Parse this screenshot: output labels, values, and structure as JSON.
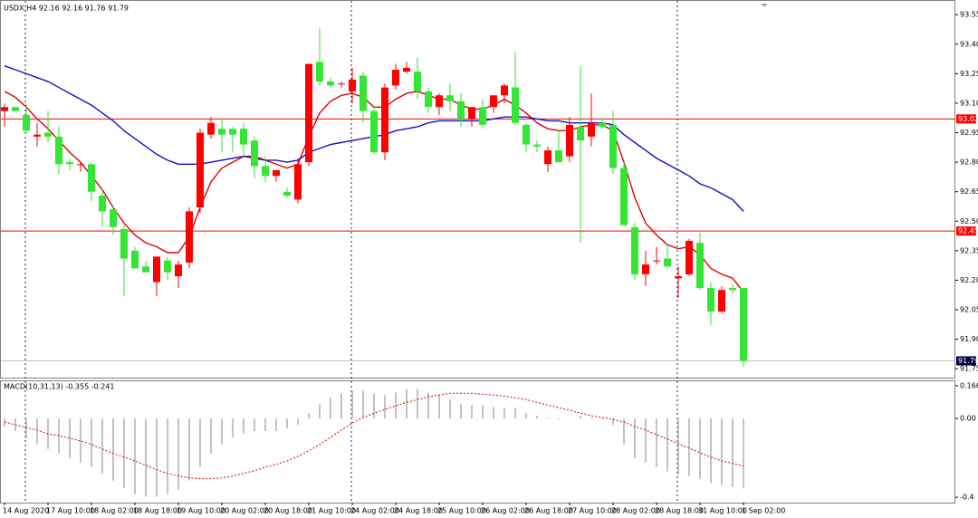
{
  "chart_data": [
    {
      "type": "candlestick",
      "title": "USDX,H4  92.16 92.16 91.76 91.79",
      "categories": [
        "14 Aug 2020",
        null,
        null,
        null,
        "17 Aug 10:00",
        null,
        null,
        null,
        "18 Aug 02:00",
        null,
        null,
        null,
        "18 Aug 18:00",
        null,
        null,
        null,
        "19 Aug 10:00",
        null,
        null,
        null,
        "20 Aug 02:00",
        null,
        null,
        null,
        "20 Aug 18:00",
        null,
        null,
        null,
        "21 Aug 10:00",
        null,
        null,
        null,
        "24 Aug 02:00",
        null,
        null,
        null,
        "24 Aug 18:00",
        null,
        null,
        null,
        "25 Aug 10:00",
        null,
        null,
        null,
        "26 Aug 02:00",
        null,
        null,
        null,
        "26 Aug 18:00",
        null,
        null,
        null,
        "27 Aug 10:00",
        null,
        null,
        null,
        "28 Aug 02:00",
        null,
        null,
        null,
        "28 Aug 18:00",
        null,
        null,
        null,
        "31 Aug 10:00",
        null,
        null,
        null,
        "1 Sep 02:00"
      ],
      "open": [
        93.06,
        93.08,
        93.04,
        92.93,
        92.95,
        92.93,
        92.8,
        92.79,
        92.79,
        92.63,
        92.56,
        92.46,
        92.35,
        92.27,
        92.19,
        92.3,
        92.22,
        92.29,
        92.57,
        92.94,
        92.97,
        92.97,
        92.97,
        92.91,
        92.78,
        92.73,
        92.65,
        92.61,
        92.8,
        93.31,
        93.21,
        93.2,
        93.16,
        93.24,
        93.06,
        92.85,
        93.19,
        93.26,
        93.26,
        93.16,
        93.08,
        93.14,
        93.11,
        93.02,
        93.08,
        93.08,
        93.14,
        93.18,
        92.99,
        92.89,
        92.79,
        92.86,
        92.83,
        92.98,
        92.93,
        93.0,
        92.99,
        92.77,
        92.47,
        92.23,
        92.3,
        92.31,
        92.21,
        92.23,
        92.39,
        92.16,
        92.04,
        92.16,
        92.16
      ],
      "high": [
        93.1,
        93.08,
        93.1,
        93.0,
        93.06,
        92.98,
        92.82,
        92.8,
        92.8,
        92.66,
        92.58,
        92.48,
        92.37,
        92.3,
        92.32,
        92.32,
        92.3,
        92.57,
        92.97,
        93.03,
        93.02,
        92.98,
        93.0,
        92.93,
        92.83,
        92.76,
        92.67,
        92.82,
        93.3,
        93.48,
        93.23,
        93.21,
        93.28,
        93.26,
        93.08,
        93.2,
        93.3,
        93.31,
        93.33,
        93.18,
        93.15,
        93.2,
        93.15,
        93.08,
        93.12,
        93.14,
        93.2,
        93.36,
        93.0,
        92.91,
        92.88,
        92.96,
        93.03,
        93.29,
        93.15,
        93.02,
        93.06,
        92.8,
        92.49,
        92.35,
        92.37,
        92.38,
        92.27,
        92.41,
        92.44,
        92.19,
        92.17,
        92.18,
        92.16
      ],
      "low": [
        92.98,
        93.06,
        92.95,
        92.88,
        92.9,
        92.74,
        92.76,
        92.75,
        92.6,
        92.47,
        92.43,
        92.12,
        92.26,
        92.24,
        92.12,
        92.2,
        92.16,
        92.26,
        92.54,
        92.92,
        92.85,
        92.85,
        92.83,
        92.72,
        92.7,
        92.7,
        92.62,
        92.59,
        92.78,
        93.19,
        93.18,
        93.18,
        93.1,
        93.0,
        92.84,
        92.81,
        93.17,
        93.25,
        93.12,
        93.05,
        93.04,
        93.06,
        92.98,
        92.98,
        92.97,
        93.05,
        93.1,
        92.99,
        92.85,
        92.85,
        92.75,
        92.8,
        92.8,
        92.39,
        92.88,
        92.97,
        92.74,
        92.48,
        92.2,
        92.17,
        92.28,
        92.26,
        92.11,
        92.22,
        92.15,
        91.97,
        92.03,
        92.13,
        91.76
      ],
      "close": [
        93.08,
        93.06,
        92.96,
        92.94,
        92.93,
        92.79,
        92.79,
        92.79,
        92.65,
        92.55,
        92.47,
        92.31,
        92.26,
        92.24,
        92.32,
        92.24,
        92.28,
        92.55,
        92.95,
        93.0,
        92.94,
        92.94,
        92.89,
        92.78,
        92.73,
        92.76,
        92.63,
        92.79,
        93.3,
        93.21,
        93.19,
        93.2,
        93.22,
        93.06,
        92.85,
        93.18,
        93.27,
        93.28,
        93.16,
        93.08,
        93.14,
        93.11,
        93.02,
        93.08,
        92.99,
        93.14,
        93.19,
        93.0,
        92.89,
        92.88,
        92.86,
        92.8,
        92.99,
        92.91,
        93.0,
        92.98,
        92.77,
        92.48,
        92.23,
        92.28,
        92.3,
        92.27,
        92.22,
        92.4,
        92.16,
        92.04,
        92.15,
        92.15,
        91.79
      ],
      "up_color": "#ff0000",
      "down_color": "#33e633",
      "overlays": [
        {
          "color": "#e00000",
          "values": [
            93.16,
            93.13,
            93.08,
            93.02,
            92.97,
            92.91,
            92.85,
            92.8,
            92.73,
            92.66,
            92.57,
            92.49,
            92.43,
            92.39,
            92.37,
            92.34,
            92.34,
            92.42,
            92.57,
            92.7,
            92.77,
            92.8,
            92.83,
            92.83,
            92.81,
            92.79,
            92.77,
            92.79,
            92.93,
            93.05,
            93.11,
            93.14,
            93.15,
            93.13,
            93.08,
            93.08,
            93.12,
            93.15,
            93.16,
            93.14,
            93.12,
            93.12,
            93.09,
            93.07,
            93.07,
            93.09,
            93.12,
            93.09,
            93.05,
            93.0,
            92.97,
            92.96,
            92.96,
            92.98,
            92.99,
            92.99,
            92.96,
            92.8,
            92.62,
            92.49,
            92.43,
            92.38,
            92.36,
            92.37,
            92.33,
            92.26,
            92.23,
            92.21,
            92.14
          ]
        },
        {
          "color": "#1010c8",
          "values": [
            93.29,
            93.27,
            93.25,
            93.23,
            93.21,
            93.18,
            93.15,
            93.12,
            93.09,
            93.05,
            93.01,
            92.96,
            92.92,
            92.88,
            92.84,
            92.81,
            92.79,
            92.79,
            92.79,
            92.8,
            92.81,
            92.82,
            92.83,
            92.82,
            92.81,
            92.81,
            92.8,
            92.81,
            92.85,
            92.87,
            92.89,
            92.9,
            92.91,
            92.92,
            92.93,
            92.94,
            92.96,
            92.97,
            92.98,
            93.0,
            93.01,
            93.01,
            93.01,
            93.01,
            93.01,
            93.02,
            93.03,
            93.03,
            93.03,
            93.02,
            93.01,
            93.01,
            93.0,
            93.0,
            93.0,
            93.0,
            92.99,
            92.94,
            92.9,
            92.86,
            92.82,
            92.79,
            92.76,
            92.73,
            92.69,
            92.67,
            92.64,
            92.61,
            92.55
          ]
        }
      ],
      "levels": [
        {
          "value": 93.02,
          "color": "#ff0000"
        },
        {
          "value": 92.45,
          "color": "#ff0000"
        }
      ],
      "last": {
        "value": 91.79,
        "color": "#c0c0c0",
        "label_color": "#000040"
      },
      "ylim": [
        91.7,
        93.62
      ],
      "yticks": [
        93.55,
        {
          "value": 93.4,
          "label": "93.40"
        },
        93.25,
        {
          "value": 93.1,
          "label": "93.10"
        },
        92.95,
        {
          "value": 92.8,
          "label": "92.80"
        },
        92.65,
        {
          "value": 92.5,
          "label": "92.50"
        },
        92.35,
        {
          "value": 92.2,
          "label": "92.20"
        },
        92.05,
        {
          "value": 91.9,
          "label": "91.90"
        },
        91.75
      ]
    },
    {
      "type": "macd",
      "title": "MACD(10,31,13) -0.355 -0.241",
      "histogram": [
        -0.041,
        -0.064,
        -0.1,
        -0.132,
        -0.155,
        -0.178,
        -0.201,
        -0.224,
        -0.247,
        -0.279,
        -0.315,
        -0.352,
        -0.384,
        -0.397,
        -0.397,
        -0.384,
        -0.361,
        -0.315,
        -0.247,
        -0.178,
        -0.132,
        -0.096,
        -0.078,
        -0.064,
        -0.064,
        -0.064,
        -0.05,
        -0.032,
        0.027,
        0.073,
        0.105,
        0.128,
        0.142,
        0.142,
        0.128,
        0.119,
        0.132,
        0.151,
        0.151,
        0.132,
        0.119,
        0.096,
        0.073,
        0.068,
        0.068,
        0.059,
        0.055,
        0.055,
        0.027,
        0.014,
        0.005,
        -0.005,
        0,
        0.014,
        0.005,
        -0.005,
        -0.032,
        -0.132,
        -0.201,
        -0.224,
        -0.247,
        -0.269,
        -0.283,
        -0.292,
        -0.306,
        -0.329,
        -0.338,
        -0.347,
        -0.355
      ],
      "histogram_color": "#b4b4b4",
      "signal": [
        -0.018,
        -0.032,
        -0.046,
        -0.059,
        -0.078,
        -0.087,
        -0.1,
        -0.114,
        -0.132,
        -0.155,
        -0.178,
        -0.196,
        -0.215,
        -0.237,
        -0.26,
        -0.279,
        -0.292,
        -0.301,
        -0.306,
        -0.306,
        -0.301,
        -0.292,
        -0.279,
        -0.265,
        -0.247,
        -0.233,
        -0.215,
        -0.192,
        -0.164,
        -0.132,
        -0.096,
        -0.059,
        -0.023,
        0.005,
        0.027,
        0.046,
        0.064,
        0.082,
        0.096,
        0.11,
        0.119,
        0.128,
        0.128,
        0.128,
        0.123,
        0.119,
        0.114,
        0.105,
        0.096,
        0.082,
        0.068,
        0.055,
        0.041,
        0.027,
        0.014,
        0.005,
        -0.005,
        -0.018,
        -0.041,
        -0.059,
        -0.082,
        -0.105,
        -0.128,
        -0.151,
        -0.174,
        -0.196,
        -0.215,
        -0.228,
        -0.241
      ],
      "signal_color": "#e00000",
      "ylim": [
        -0.427,
        0.189
      ],
      "yticks": [
        0.166,
        {
          "value": 0,
          "label": "0.00"
        },
        -0.4
      ]
    }
  ]
}
